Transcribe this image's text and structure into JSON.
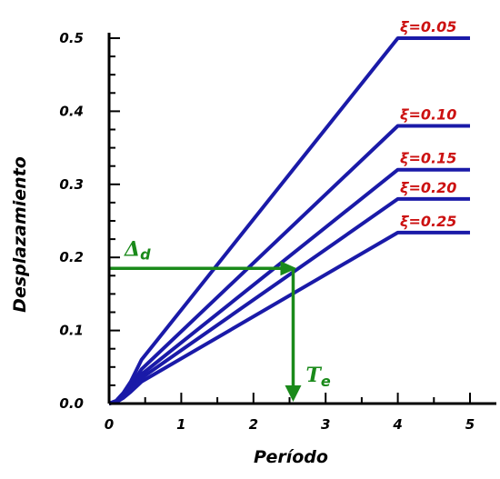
{
  "chart_data": {
    "type": "line",
    "title": "",
    "xlabel": "Período",
    "ylabel": "Desplazamiento",
    "xlim": [
      0,
      5
    ],
    "ylim": [
      0,
      0.5
    ],
    "x_ticks": [
      "0",
      "1",
      "2",
      "3",
      "4",
      "5"
    ],
    "y_ticks": [
      "0.0",
      "0.1",
      "0.2",
      "0.3",
      "0.4",
      "0.5"
    ],
    "grid": false,
    "series": [
      {
        "name": "ξ=0.05",
        "x": [
          0,
          0.1,
          0.2,
          0.3,
          0.45,
          4,
          5
        ],
        "y": [
          0,
          0.004,
          0.015,
          0.03,
          0.06,
          0.5,
          0.5
        ]
      },
      {
        "name": "ξ=0.10",
        "x": [
          0,
          0.1,
          0.2,
          0.3,
          0.45,
          4,
          5
        ],
        "y": [
          0,
          0.003,
          0.012,
          0.024,
          0.047,
          0.38,
          0.38
        ]
      },
      {
        "name": "ξ=0.15",
        "x": [
          0,
          0.1,
          0.2,
          0.3,
          0.45,
          4,
          5
        ],
        "y": [
          0,
          0.003,
          0.01,
          0.021,
          0.04,
          0.32,
          0.32
        ]
      },
      {
        "name": "ξ=0.20",
        "x": [
          0,
          0.1,
          0.2,
          0.3,
          0.45,
          4,
          5
        ],
        "y": [
          0,
          0.002,
          0.009,
          0.019,
          0.035,
          0.28,
          0.28
        ]
      },
      {
        "name": "ξ=0.25",
        "x": [
          0,
          0.1,
          0.2,
          0.3,
          0.45,
          4,
          5
        ],
        "y": [
          0,
          0.002,
          0.008,
          0.016,
          0.03,
          0.234,
          0.234
        ]
      }
    ],
    "annotations": [
      {
        "label": "Δ",
        "subscript": "d",
        "x_start": 0,
        "y": 0.185,
        "x_end": 2.55,
        "direction": "horizontal"
      },
      {
        "label": "T",
        "subscript": "e",
        "x": 2.55,
        "y_start": 0.185,
        "y_end": 0,
        "direction": "vertical"
      }
    ],
    "colors": {
      "series": "#1a1aa8",
      "labels": "#cc1111",
      "annotation": "#1a8a1a",
      "axes": "#000000"
    }
  }
}
